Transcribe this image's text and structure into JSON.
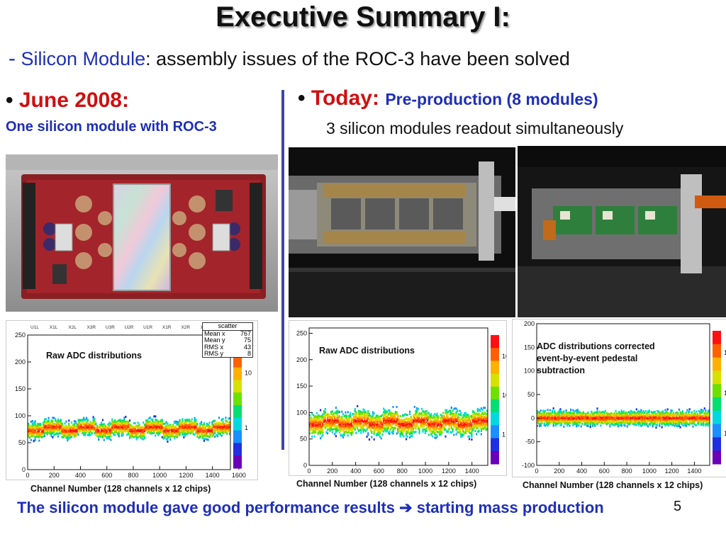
{
  "title": "Executive Summary I:",
  "subtitle": {
    "dash": "-",
    "highlight": "Silicon Module",
    "rest": ": assembly issues of the ROC-3 have been solved"
  },
  "left": {
    "bullet": "•",
    "heading": "June 2008:",
    "subheading": "One silicon module with ROC-3",
    "plot_caption": "Channel Number (128 channels x 12 chips)"
  },
  "right": {
    "bullet": "•",
    "heading": "Today:",
    "heading_detail": "Pre-production (8 modules)",
    "subheading": "3 silicon modules readout simultaneously",
    "plot1_caption": "Channel Number (128 channels x 12 chips)",
    "plot2_caption": "Channel Number (128 channels x 12 chips)"
  },
  "footer": {
    "text": "The silicon module gave good performance results",
    "arrow": "➔",
    "text2": "starting mass production"
  },
  "page_number": "5",
  "colors": {
    "accent_blue": "#1e2fb8",
    "accent_red": "#d10f0f"
  },
  "chart_data": [
    {
      "type": "heatmap",
      "title": "Raw ADC distributions",
      "top_labels": [
        "U1L",
        "X1L",
        "X2L",
        "X3R",
        "U3R",
        "U2R",
        "U1R",
        "X1R",
        "X2R",
        "X3L",
        "U3L"
      ],
      "xlabel": "Channel Number (128 channels x 12 chips)",
      "x_ticks": [
        0,
        200,
        400,
        600,
        800,
        1000,
        1200,
        1400,
        1600
      ],
      "y_ticks": [
        0,
        50,
        100,
        150,
        200,
        250
      ],
      "xlim": [
        0,
        1536
      ],
      "ylim": [
        0,
        250
      ],
      "band_center": 75,
      "band_halfwidth": 22,
      "color_ticks": [
        "10",
        "1"
      ],
      "stats": {
        "name": "scatter",
        "labels": [
          "Mean x",
          "Mean y",
          "RMS x",
          "RMS y"
        ],
        "values": [
          "767",
          "75",
          "43",
          "8"
        ]
      }
    },
    {
      "type": "heatmap",
      "title": "Raw ADC distributions",
      "xlabel": "Channel Number (128 channels x 12 chips)",
      "x_ticks": [
        0,
        200,
        400,
        600,
        800,
        1000,
        1200,
        1400
      ],
      "y_ticks": [
        0,
        50,
        100,
        150,
        200,
        250
      ],
      "xlim": [
        0,
        1536
      ],
      "ylim": [
        0,
        260
      ],
      "band_center": 80,
      "band_halfwidth": 32,
      "color_ticks": [
        "10²",
        "10",
        "1"
      ]
    },
    {
      "type": "heatmap",
      "title": "ADC distributions corrected event-by-event pedestal subtraction",
      "xlabel": "Channel Number (128 channels x 12 chips)",
      "x_ticks": [
        0,
        200,
        400,
        600,
        800,
        1000,
        1200,
        1400
      ],
      "y_ticks": [
        -100,
        -50,
        0,
        50,
        100,
        150,
        200
      ],
      "xlim": [
        0,
        1536
      ],
      "ylim": [
        -100,
        200
      ],
      "band_center": 0,
      "band_halfwidth": 22,
      "color_ticks": [
        "10²",
        "10",
        "1"
      ]
    }
  ]
}
